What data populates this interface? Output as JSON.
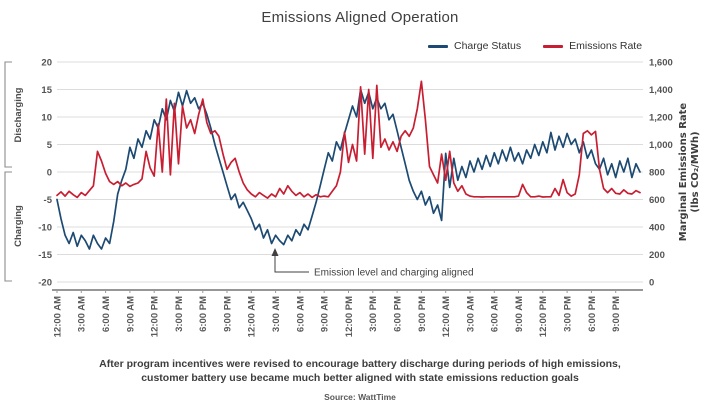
{
  "title": "Emissions Aligned Operation",
  "legend": {
    "items": [
      {
        "label": "Charge Status",
        "color": "#1C4A73"
      },
      {
        "label": "Emissions Rate",
        "color": "#C81E32"
      }
    ]
  },
  "left_axis": {
    "bracket_top": "Discharging",
    "bracket_bottom": "Charging",
    "tick_labels": [
      "20",
      "15",
      "10",
      "5",
      "0",
      "-5",
      "-10",
      "-15",
      "-20"
    ],
    "tick_values": [
      20,
      15,
      10,
      5,
      0,
      -5,
      -10,
      -15,
      -20
    ]
  },
  "right_axis": {
    "title_line1": "Marginal Emissions Rate",
    "title_line2": "(lbs CO₂/MWh)",
    "tick_labels": [
      "1,600",
      "1,400",
      "1,200",
      "1,000",
      "800",
      "600",
      "400",
      "200",
      "0"
    ],
    "tick_values": [
      1600,
      1400,
      1200,
      1000,
      800,
      600,
      400,
      200,
      0
    ]
  },
  "x_axis": {
    "tick_labels": [
      "12:00 AM",
      "3:00 AM",
      "6:00 AM",
      "9:00 AM",
      "12:00 PM",
      "3:00 PM",
      "6:00 PM",
      "9:00 PM",
      "12:00 AM",
      "3:00 AM",
      "6:00 AM",
      "9:00 AM",
      "12:00 PM",
      "3:00 PM",
      "6:00 PM",
      "9:00 PM",
      "12:00 AM",
      "3:00 AM",
      "6:00 AM",
      "9:00 AM",
      "12:00 PM",
      "3:00 PM",
      "6:00 PM",
      "9:00 PM"
    ],
    "tick_hours": [
      0,
      3,
      6,
      9,
      12,
      15,
      18,
      21,
      24,
      27,
      30,
      33,
      36,
      39,
      42,
      45,
      48,
      51,
      54,
      57,
      60,
      63,
      66,
      69
    ]
  },
  "annotation": {
    "text": "Emission level and charging aligned"
  },
  "caption": {
    "line1": "After program incentives were revised to encourage battery discharge during periods of high emissions,",
    "line2": "customer battery use became much better aligned with state emissions reduction goals"
  },
  "source": "Source: WattTime",
  "colors": {
    "charge_status": "#1C4A73",
    "emissions_rate": "#C81E32",
    "gridline": "#dcdcdc",
    "axis_line": "#595959"
  },
  "chart_data": {
    "type": "line",
    "title": "Emissions Aligned Operation",
    "x_unit": "hours",
    "x_range_hours": [
      0,
      72
    ],
    "step_hours": 0.5,
    "left_axis_range": [
      -20,
      20
    ],
    "right_axis_range": [
      0,
      1600
    ],
    "legend_position": "top-right",
    "grid": "horizontal",
    "series": [
      {
        "name": "Charge Status",
        "axis": "left",
        "color": "#1C4A73",
        "values": [
          -5,
          -8.5,
          -11.5,
          -13,
          -11,
          -13.5,
          -11.5,
          -12.5,
          -14,
          -11.5,
          -13,
          -14,
          -12,
          -13,
          -9,
          -4,
          -1.5,
          0.5,
          4.5,
          2.5,
          6,
          4.5,
          7.5,
          6,
          9.5,
          8,
          11.5,
          9.5,
          13,
          11,
          14.5,
          12,
          14.8,
          12.5,
          13.5,
          11.5,
          12.5,
          10.5,
          8,
          5,
          2.5,
          0,
          -2.5,
          -5,
          -4,
          -6.5,
          -5.5,
          -7,
          -8.5,
          -10.5,
          -9.5,
          -12,
          -10.5,
          -13,
          -11.5,
          -12.5,
          -13.2,
          -11.5,
          -12.5,
          -10.5,
          -11.5,
          -9.5,
          -10.5,
          -8,
          -5.5,
          -2.5,
          0.5,
          3.5,
          2,
          5.5,
          4,
          7,
          9.5,
          12,
          10,
          15,
          12.5,
          14.5,
          11.5,
          13.5,
          11.5,
          12.5,
          9.5,
          10.5,
          7.5,
          4.5,
          1.5,
          -1.5,
          -3.5,
          -5,
          -3.5,
          -6,
          -4.5,
          -7.5,
          -6,
          -8.8,
          3.4,
          -2.8,
          2.5,
          -1.5,
          1,
          -1,
          2,
          0,
          2.5,
          0.5,
          3,
          1,
          3.5,
          1.5,
          4,
          2,
          4.5,
          2,
          3.5,
          1.5,
          4,
          2.5,
          5,
          3,
          5.5,
          3.5,
          7.2,
          4,
          6.5,
          4.5,
          7,
          5,
          6,
          3.5,
          5.5,
          2.5,
          4,
          1.5,
          0.5,
          2.5,
          -0.5,
          1.5,
          -1,
          2,
          0,
          2.5,
          -1,
          1.5,
          0
        ]
      },
      {
        "name": "Emissions Rate",
        "axis": "right",
        "units": "lbs CO2/MWh",
        "color": "#C81E32",
        "values": [
          630,
          655,
          625,
          660,
          635,
          615,
          650,
          630,
          665,
          700,
          950,
          880,
          790,
          730,
          710,
          730,
          700,
          720,
          695,
          710,
          720,
          750,
          950,
          830,
          770,
          1150,
          800,
          1330,
          780,
          1300,
          860,
          1280,
          1120,
          1180,
          1080,
          1220,
          1330,
          1160,
          1080,
          1100,
          1060,
          930,
          820,
          870,
          900,
          800,
          720,
          670,
          640,
          620,
          650,
          630,
          610,
          640,
          620,
          680,
          640,
          700,
          660,
          630,
          650,
          620,
          640,
          615,
          635,
          620,
          625,
          620,
          660,
          700,
          800,
          1090,
          870,
          1000,
          880,
          1420,
          930,
          1400,
          900,
          1430,
          980,
          1040,
          960,
          1020,
          950,
          1060,
          1100,
          1060,
          1120,
          1260,
          1460,
          1180,
          840,
          780,
          720,
          930,
          740,
          950,
          720,
          660,
          700,
          640,
          625,
          620,
          620,
          618,
          620,
          620,
          620,
          620,
          620,
          620,
          620,
          620,
          625,
          710,
          650,
          620,
          620,
          625,
          618,
          620,
          620,
          680,
          630,
          745,
          650,
          625,
          640,
          780,
          1080,
          1100,
          1070,
          1095,
          820,
          680,
          650,
          680,
          645,
          640,
          670,
          645,
          640,
          665,
          650
        ]
      }
    ]
  }
}
